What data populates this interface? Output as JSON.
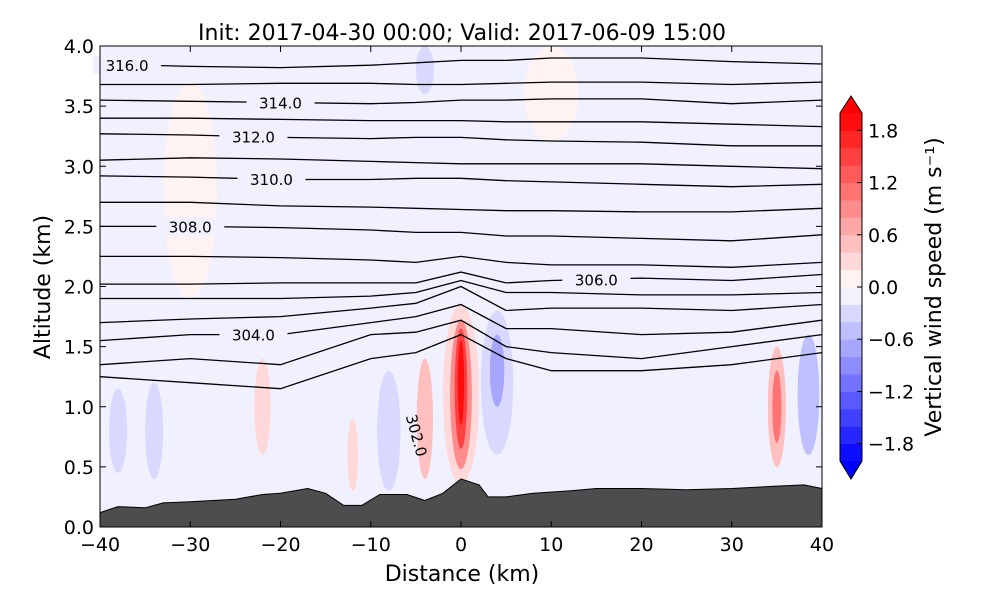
{
  "chart_data": {
    "type": "contour",
    "title": "Init: 2017-04-30 00:00; Valid: 2017-06-09 15:00",
    "xlabel": "Distance (km)",
    "ylabel": "Altitude (km)",
    "xlim": [
      -40,
      40
    ],
    "ylim": [
      0,
      4
    ],
    "xticks": [
      "−40",
      "−30",
      "−20",
      "−10",
      "0",
      "10",
      "20",
      "30",
      "40"
    ],
    "xtick_values": [
      -40,
      -30,
      -20,
      -10,
      0,
      10,
      20,
      30,
      40
    ],
    "yticks": [
      "0.0",
      "0.5",
      "1.0",
      "1.5",
      "2.0",
      "2.5",
      "3.0",
      "3.5",
      "4.0"
    ],
    "ytick_values": [
      0,
      0.5,
      1,
      1.5,
      2,
      2.5,
      3,
      3.5,
      4
    ],
    "colorbar": {
      "label": "Vertical wind speed (m s⁻¹)",
      "range": [
        -2.0,
        2.0
      ],
      "step": 0.2,
      "extend": "both",
      "colormap": "bwr",
      "ticks": [
        "1.8",
        "1.2",
        "0.6",
        "0.0",
        "−0.6",
        "−1.2",
        "−1.8"
      ],
      "tick_values": [
        1.8,
        1.2,
        0.6,
        0.0,
        -0.6,
        -1.2,
        -1.8
      ]
    },
    "terrain": {
      "color": "#4d4d4d",
      "x": [
        -40,
        -38,
        -35,
        -33,
        -30,
        -25,
        -22,
        -20,
        -17,
        -15,
        -13,
        -11,
        -9,
        -6,
        -4,
        -2,
        0,
        2,
        3,
        5,
        8,
        12,
        15,
        20,
        25,
        30,
        35,
        38,
        40
      ],
      "z": [
        0.12,
        0.17,
        0.16,
        0.2,
        0.21,
        0.23,
        0.27,
        0.28,
        0.32,
        0.28,
        0.18,
        0.18,
        0.27,
        0.27,
        0.22,
        0.28,
        0.4,
        0.35,
        0.25,
        0.25,
        0.28,
        0.3,
        0.32,
        0.32,
        0.31,
        0.32,
        0.34,
        0.35,
        0.32
      ]
    },
    "isentrope_x": [
      -40,
      -30,
      -20,
      -10,
      -5,
      0,
      5,
      10,
      20,
      30,
      40
    ],
    "isentropes": [
      {
        "level": 316.0,
        "label": "316.0",
        "label_x": -37,
        "z": [
          3.85,
          3.83,
          3.82,
          3.84,
          3.86,
          3.88,
          3.88,
          3.9,
          3.9,
          3.87,
          3.85
        ]
      },
      {
        "level": 315.0,
        "z": [
          3.68,
          3.68,
          3.69,
          3.69,
          3.68,
          3.68,
          3.69,
          3.7,
          3.7,
          3.68,
          3.7
        ]
      },
      {
        "level": 314.0,
        "label": "314.0",
        "label_x": -20,
        "z": [
          3.55,
          3.54,
          3.53,
          3.52,
          3.53,
          3.55,
          3.55,
          3.56,
          3.56,
          3.52,
          3.55
        ]
      },
      {
        "level": 313.0,
        "z": [
          3.4,
          3.4,
          3.39,
          3.38,
          3.38,
          3.38,
          3.37,
          3.37,
          3.37,
          3.35,
          3.33
        ]
      },
      {
        "level": 312.0,
        "label": "312.0",
        "label_x": -23,
        "z": [
          3.27,
          3.26,
          3.24,
          3.23,
          3.24,
          3.24,
          3.22,
          3.21,
          3.2,
          3.17,
          3.17
        ]
      },
      {
        "level": 311.0,
        "z": [
          3.05,
          3.07,
          3.06,
          3.04,
          3.03,
          3.02,
          3.02,
          3.02,
          3.02,
          3.0,
          2.98
        ]
      },
      {
        "level": 310.0,
        "label": "310.0",
        "label_x": -21,
        "z": [
          2.92,
          2.91,
          2.89,
          2.89,
          2.9,
          2.9,
          2.88,
          2.87,
          2.85,
          2.83,
          2.85
        ]
      },
      {
        "level": 309.0,
        "z": [
          2.7,
          2.7,
          2.67,
          2.66,
          2.65,
          2.64,
          2.63,
          2.63,
          2.62,
          2.62,
          2.65
        ]
      },
      {
        "level": 308.0,
        "label": "308.0",
        "label_x": -30,
        "z": [
          2.5,
          2.5,
          2.49,
          2.47,
          2.45,
          2.45,
          2.42,
          2.42,
          2.4,
          2.38,
          2.43
        ]
      },
      {
        "level": 307.0,
        "z": [
          2.25,
          2.25,
          2.24,
          2.22,
          2.2,
          2.25,
          2.2,
          2.18,
          2.18,
          2.16,
          2.2
        ]
      },
      {
        "level": 306.0,
        "label": "306.0",
        "label_x": 15,
        "z": [
          2.02,
          2.02,
          2.03,
          2.03,
          2.03,
          2.12,
          2.03,
          2.05,
          2.07,
          2.05,
          2.1
        ]
      },
      {
        "level": 305.5,
        "z": [
          1.9,
          1.9,
          1.9,
          1.92,
          1.95,
          2.05,
          1.95,
          1.95,
          1.93,
          1.93,
          1.95
        ]
      },
      {
        "level": 305.0,
        "z": [
          1.7,
          1.73,
          1.75,
          1.82,
          1.86,
          2.0,
          1.8,
          1.82,
          1.82,
          1.8,
          1.85
        ]
      },
      {
        "level": 304.0,
        "label": "304.0",
        "label_x": -23,
        "z": [
          1.55,
          1.6,
          1.6,
          1.7,
          1.75,
          1.85,
          1.65,
          1.65,
          1.6,
          1.62,
          1.72
        ]
      },
      {
        "level": 303.5,
        "z": [
          1.35,
          1.4,
          1.35,
          1.6,
          1.62,
          1.72,
          1.5,
          1.45,
          1.4,
          1.5,
          1.6
        ]
      },
      {
        "level": 303.0,
        "z": [
          1.25,
          1.2,
          1.15,
          1.4,
          1.45,
          1.6,
          1.4,
          1.3,
          1.3,
          1.35,
          1.45
        ]
      }
    ],
    "extra_label": {
      "text": "302.0",
      "x": -5.5,
      "z": 0.75
    },
    "w_features": [
      {
        "x": 0,
        "z": 1.1,
        "rx": 2.0,
        "rz": 0.75,
        "w": 0.3
      },
      {
        "x": 0,
        "z": 1.1,
        "rx": 1.2,
        "rz": 0.62,
        "w": 0.9
      },
      {
        "x": 0,
        "z": 1.15,
        "rx": 0.7,
        "rz": 0.5,
        "w": 1.5
      },
      {
        "x": 0,
        "z": 1.2,
        "rx": 0.35,
        "rz": 0.35,
        "w": 1.9
      },
      {
        "x": 4,
        "z": 1.2,
        "rx": 1.8,
        "rz": 0.6,
        "w": -0.3
      },
      {
        "x": 4,
        "z": 1.3,
        "rx": 0.8,
        "rz": 0.3,
        "w": -0.7
      },
      {
        "x": -4,
        "z": 0.9,
        "rx": 0.9,
        "rz": 0.5,
        "w": 0.4
      },
      {
        "x": -8,
        "z": 0.8,
        "rx": 1.3,
        "rz": 0.5,
        "w": -0.4
      },
      {
        "x": -12,
        "z": 0.6,
        "rx": 0.6,
        "rz": 0.3,
        "w": 0.3
      },
      {
        "x": -22,
        "z": 1.0,
        "rx": 0.9,
        "rz": 0.4,
        "w": 0.3
      },
      {
        "x": 35,
        "z": 1.0,
        "rx": 1.0,
        "rz": 0.5,
        "w": 0.5
      },
      {
        "x": 35,
        "z": 1.0,
        "rx": 0.5,
        "rz": 0.3,
        "w": 1.1
      },
      {
        "x": 38.5,
        "z": 1.1,
        "rx": 1.2,
        "rz": 0.5,
        "w": -0.5
      },
      {
        "x": -38,
        "z": 0.8,
        "rx": 1.0,
        "rz": 0.35,
        "w": -0.3
      },
      {
        "x": -34,
        "z": 0.8,
        "rx": 1.0,
        "rz": 0.4,
        "w": -0.3
      },
      {
        "x": 10,
        "z": 3.6,
        "rx": 3.0,
        "rz": 0.4,
        "w": 0.1
      },
      {
        "x": -30,
        "z": 2.8,
        "rx": 3.0,
        "rz": 0.9,
        "w": 0.1
      },
      {
        "x": -4,
        "z": 3.8,
        "rx": 1.0,
        "rz": 0.2,
        "w": -0.3
      }
    ]
  }
}
